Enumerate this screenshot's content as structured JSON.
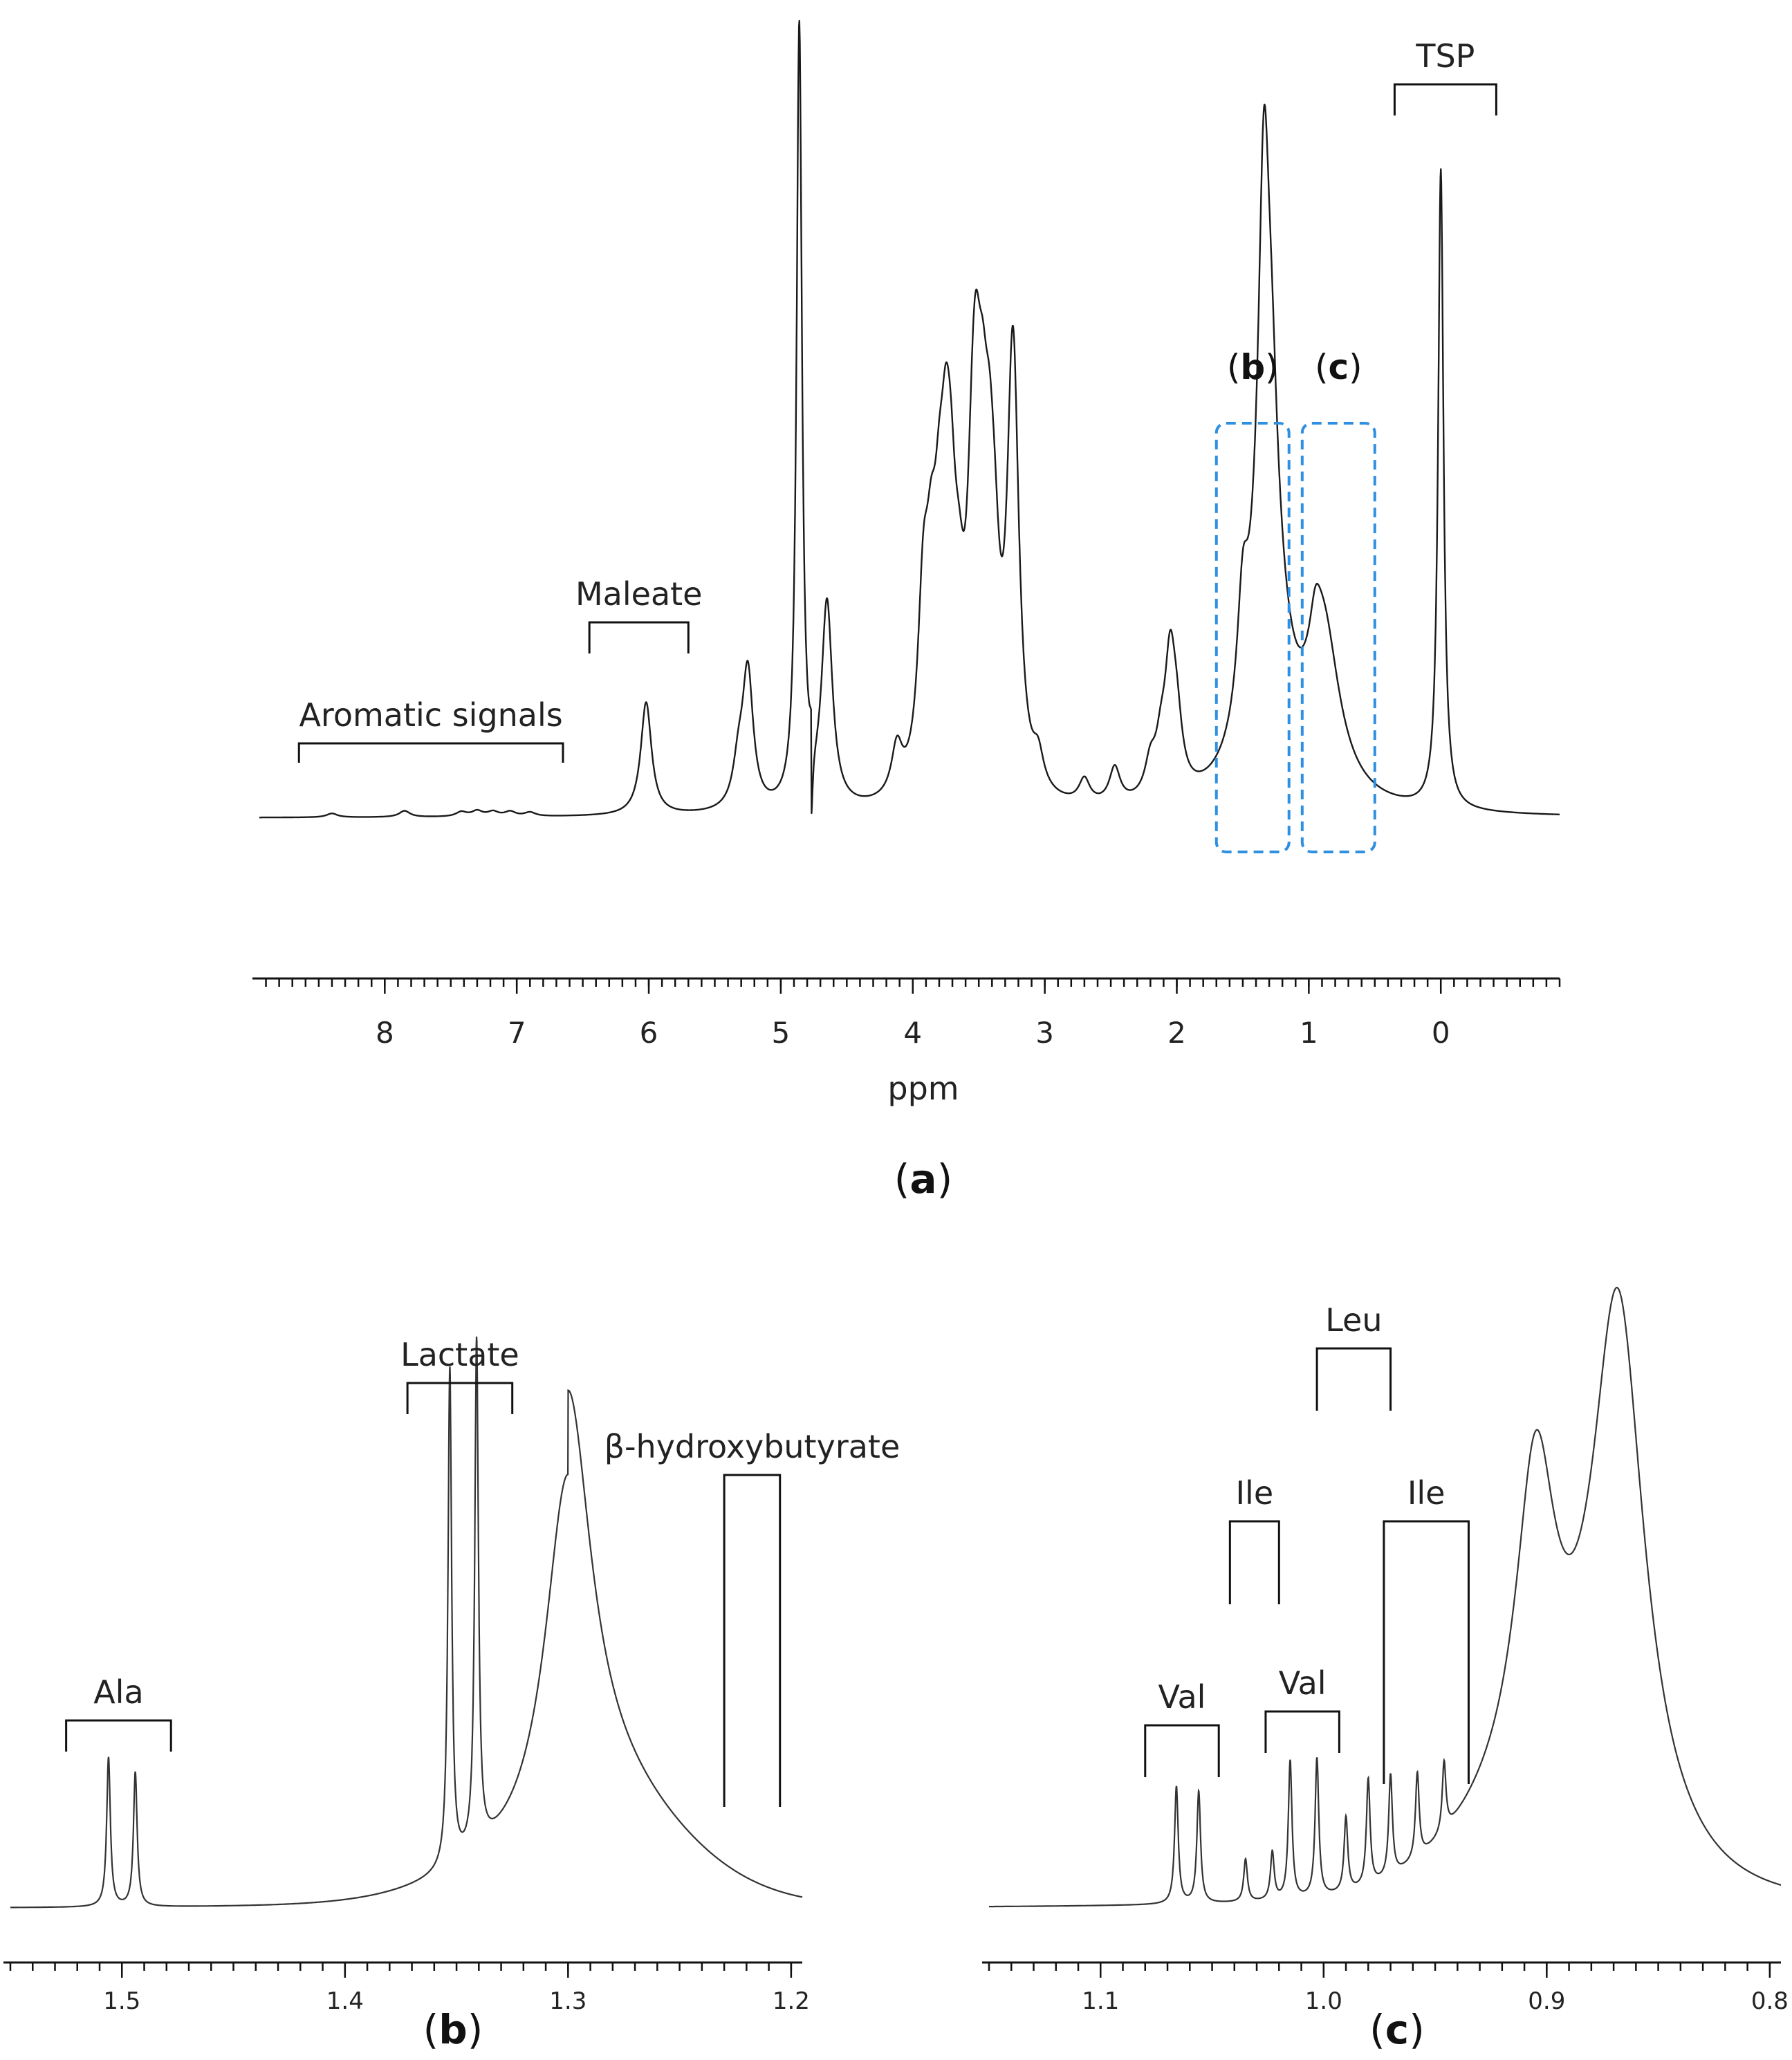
{
  "chart_data": [
    {
      "panel": "a",
      "type": "line",
      "xlabel": "ppm",
      "xlim": [
        8.95,
        -0.9
      ],
      "x_reversed": true,
      "ticks": [
        "8",
        "7",
        "6",
        "5",
        "4",
        "3",
        "2",
        "1",
        "0"
      ],
      "annotations": [
        {
          "label": "Aromatic signals",
          "range": [
            8.65,
            6.65
          ]
        },
        {
          "label": "Maleate",
          "range": [
            6.45,
            5.7
          ]
        },
        {
          "label": "TSP",
          "range": [
            0.35,
            -0.42
          ]
        }
      ],
      "zoom_regions": [
        {
          "label": "b",
          "range": [
            1.7,
            1.15
          ]
        },
        {
          "label": "c",
          "range": [
            1.05,
            0.5
          ]
        }
      ],
      "peaks": [
        {
          "x": 8.4,
          "height": 0.005
        },
        {
          "x": 7.85,
          "height": 0.008
        },
        {
          "x": 7.42,
          "height": 0.006
        },
        {
          "x": 7.3,
          "height": 0.007
        },
        {
          "x": 7.18,
          "height": 0.006
        },
        {
          "x": 7.05,
          "height": 0.006
        },
        {
          "x": 6.9,
          "height": 0.005
        },
        {
          "x": 6.02,
          "height": 0.145
        },
        {
          "x": 5.32,
          "height": 0.05
        },
        {
          "x": 5.25,
          "height": 0.175
        },
        {
          "x": 4.86,
          "height": 1.0
        },
        {
          "x": 4.65,
          "height": 0.26
        },
        {
          "x": 4.12,
          "height": 0.06
        },
        {
          "x": 3.92,
          "height": 0.21
        },
        {
          "x": 3.86,
          "height": 0.18
        },
        {
          "x": 3.8,
          "height": 0.19
        },
        {
          "x": 3.75,
          "height": 0.25
        },
        {
          "x": 3.71,
          "height": 0.2
        },
        {
          "x": 3.65,
          "height": 0.12
        },
        {
          "x": 3.55,
          "height": 0.2
        },
        {
          "x": 3.52,
          "height": 0.28
        },
        {
          "x": 3.47,
          "height": 0.24
        },
        {
          "x": 3.42,
          "height": 0.22
        },
        {
          "x": 3.38,
          "height": 0.15
        },
        {
          "x": 3.25,
          "height": 0.31
        },
        {
          "x": 3.23,
          "height": 0.27
        },
        {
          "x": 3.05,
          "height": 0.04
        },
        {
          "x": 2.7,
          "height": 0.03
        },
        {
          "x": 2.47,
          "height": 0.045
        },
        {
          "x": 2.2,
          "height": 0.04
        },
        {
          "x": 2.12,
          "height": 0.05
        },
        {
          "x": 2.05,
          "height": 0.16
        },
        {
          "x": 2.0,
          "height": 0.07
        },
        {
          "x": 1.5,
          "height": 0.14
        },
        {
          "x": 1.34,
          "height": 0.47
        },
        {
          "x": 1.31,
          "height": 0.37
        },
        {
          "x": 1.28,
          "height": 0.12
        },
        {
          "x": 0.95,
          "height": 0.05
        },
        {
          "x": 0.89,
          "height": 0.21
        },
        {
          "x": 0.0,
          "height": 0.82
        }
      ],
      "solvent_dip": {
        "x": 4.77,
        "depth": 0.07
      }
    },
    {
      "panel": "b",
      "type": "line",
      "xlim": [
        1.55,
        1.195
      ],
      "x_reversed": true,
      "ticks": [
        "1.5",
        "1.4",
        "1.3",
        "1.2"
      ],
      "annotations": [
        {
          "label": "Ala",
          "range": [
            1.525,
            1.478
          ]
        },
        {
          "label": "Lactate",
          "range": [
            1.372,
            1.325
          ]
        },
        {
          "label": "β-hydroxybutyrate",
          "range": [
            1.23,
            1.205
          ]
        }
      ],
      "peaks": [
        {
          "x": 1.506,
          "height": 0.3
        },
        {
          "x": 1.494,
          "height": 0.27
        },
        {
          "x": 1.353,
          "height": 1.0
        },
        {
          "x": 1.341,
          "height": 1.02
        },
        {
          "x": 1.3,
          "height": 0.78
        }
      ]
    },
    {
      "panel": "c",
      "type": "line",
      "xlim": [
        1.15,
        0.795
      ],
      "x_reversed": true,
      "ticks": [
        "1.1",
        "1.0",
        "0.9",
        "0.8"
      ],
      "annotations": [
        {
          "label": "Val",
          "range": [
            1.08,
            1.047
          ]
        },
        {
          "label": "Ile",
          "range": [
            1.042,
            1.02
          ]
        },
        {
          "label": "Val",
          "range": [
            1.026,
            0.993
          ]
        },
        {
          "label": "Leu",
          "range": [
            1.003,
            0.97
          ]
        },
        {
          "label": "Ile",
          "range": [
            0.973,
            0.935
          ]
        }
      ],
      "peaks": [
        {
          "x": 1.066,
          "height": 0.22
        },
        {
          "x": 1.056,
          "height": 0.21
        },
        {
          "x": 1.035,
          "height": 0.08
        },
        {
          "x": 1.023,
          "height": 0.09
        },
        {
          "x": 1.015,
          "height": 0.26
        },
        {
          "x": 1.003,
          "height": 0.26
        },
        {
          "x": 0.99,
          "height": 0.14
        },
        {
          "x": 0.98,
          "height": 0.2
        },
        {
          "x": 0.97,
          "height": 0.19
        },
        {
          "x": 0.958,
          "height": 0.16
        },
        {
          "x": 0.946,
          "height": 0.13
        },
        {
          "x": 0.905,
          "height": 0.59
        },
        {
          "x": 0.868,
          "height": 1.0
        }
      ]
    }
  ],
  "panel_labels": {
    "a": "a",
    "b": "b",
    "c": "c"
  }
}
